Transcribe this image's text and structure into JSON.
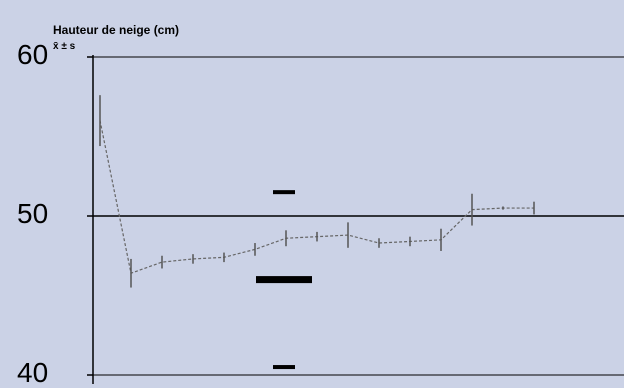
{
  "chart_data": {
    "type": "line",
    "ylabel": "Hauteur de neige (cm)",
    "subtitle": "x̄ ± s",
    "xlabel": "",
    "ylim": [
      40,
      60
    ],
    "yticks": [
      40,
      50,
      60
    ],
    "grid": true,
    "series": [
      {
        "style": "dashed",
        "color": "#666666",
        "points": [
          {
            "x": 1,
            "mean": 56.0,
            "sd": 1.6
          },
          {
            "x": 2,
            "mean": 46.4,
            "sd": 0.9
          },
          {
            "x": 3,
            "mean": 47.1,
            "sd": 0.4
          },
          {
            "x": 4,
            "mean": 47.3,
            "sd": 0.3
          },
          {
            "x": 5,
            "mean": 47.4,
            "sd": 0.3
          },
          {
            "x": 6,
            "mean": 47.9,
            "sd": 0.4
          },
          {
            "x": 7,
            "mean": 48.6,
            "sd": 0.5
          },
          {
            "x": 8,
            "mean": 48.7,
            "sd": 0.3
          },
          {
            "x": 9,
            "mean": 48.8,
            "sd": 0.8
          },
          {
            "x": 10,
            "mean": 48.3,
            "sd": 0.3
          },
          {
            "x": 11,
            "mean": 48.4,
            "sd": 0.3
          },
          {
            "x": 12,
            "mean": 48.5,
            "sd": 0.7
          },
          {
            "x": 13,
            "mean": 50.4,
            "sd": 1.0
          },
          {
            "x": 14,
            "mean": 50.5,
            "sd": 0.1
          },
          {
            "x": 15,
            "mean": 50.5,
            "sd": 0.4
          }
        ]
      }
    ],
    "legend_marks": [
      {
        "y": 51.5,
        "style": "thin"
      },
      {
        "y": 46.0,
        "style": "thick"
      },
      {
        "y": 40.5,
        "style": "thin"
      }
    ]
  }
}
